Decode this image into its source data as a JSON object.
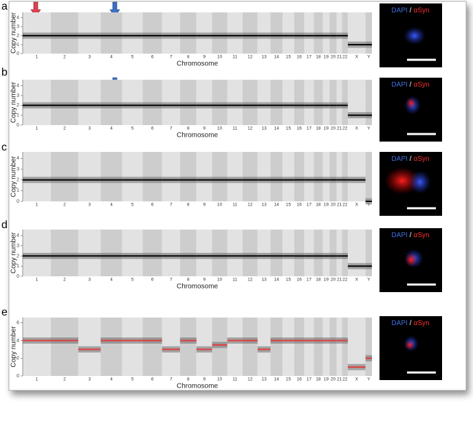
{
  "chart_data": [
    {
      "type": "line",
      "panel": "a",
      "ylabel": "Copy number",
      "xlabel": "Chromosome",
      "categories": [
        "1",
        "2",
        "3",
        "4",
        "5",
        "6",
        "7",
        "8",
        "9",
        "10",
        "11",
        "12",
        "13",
        "14",
        "15",
        "16",
        "17",
        "18",
        "19",
        "20",
        "21",
        "22",
        "X",
        "Y"
      ],
      "series": [
        {
          "color": "#000000",
          "values": [
            2,
            2,
            2,
            2,
            2,
            2,
            2,
            2,
            2,
            2,
            2,
            2,
            2,
            2,
            2,
            2,
            2,
            2,
            2,
            2,
            2,
            2,
            1,
            1
          ]
        }
      ],
      "ylim": [
        0,
        4.6
      ],
      "yticks": [
        0,
        1,
        2,
        3,
        4
      ],
      "image": {
        "stain1": "DAPI",
        "separator": "/",
        "stain2": "αSyn"
      }
    },
    {
      "type": "line",
      "panel": "b",
      "ylabel": "Copy number",
      "xlabel": "Chromosome",
      "categories": [
        "1",
        "2",
        "3",
        "4",
        "5",
        "6",
        "7",
        "8",
        "9",
        "10",
        "11",
        "12",
        "13",
        "14",
        "15",
        "16",
        "17",
        "18",
        "19",
        "20",
        "21",
        "22",
        "X",
        "Y"
      ],
      "series": [
        {
          "color": "#000000",
          "values": [
            2,
            2,
            2,
            2,
            2,
            2,
            2,
            2,
            2,
            2,
            2,
            2,
            2,
            2,
            2,
            2,
            2,
            2,
            2,
            2,
            2,
            2,
            1,
            1
          ]
        }
      ],
      "ylim": [
        0,
        4.6
      ],
      "yticks": [
        0,
        1,
        2,
        3,
        4
      ],
      "image": {
        "stain1": "DAPI",
        "separator": "/",
        "stain2": "αSyn"
      }
    },
    {
      "type": "line",
      "panel": "c",
      "ylabel": "Copy number",
      "categories": [
        "1",
        "2",
        "3",
        "4",
        "5",
        "6",
        "7",
        "8",
        "9",
        "10",
        "11",
        "12",
        "13",
        "14",
        "15",
        "16",
        "17",
        "18",
        "19",
        "20",
        "21",
        "22",
        "X",
        "Y"
      ],
      "series": [
        {
          "color": "#000000",
          "values": [
            2,
            2,
            2,
            2,
            2,
            2,
            2,
            2,
            2,
            2,
            2,
            2,
            2,
            2,
            2,
            2,
            2,
            2,
            2,
            2,
            2,
            2,
            2,
            0
          ]
        }
      ],
      "ylim": [
        0,
        4.6
      ],
      "yticks": [
        0,
        1,
        2,
        3,
        4
      ],
      "image": {
        "stain1": "DAPI",
        "separator": "/",
        "stain2": "αSyn"
      }
    },
    {
      "type": "line",
      "panel": "d",
      "ylabel": "Copy number",
      "xlabel": "Chromosome",
      "categories": [
        "1",
        "2",
        "3",
        "4",
        "5",
        "6",
        "7",
        "8",
        "9",
        "10",
        "11",
        "12",
        "13",
        "14",
        "15",
        "16",
        "17",
        "18",
        "19",
        "20",
        "21",
        "22",
        "X",
        "Y"
      ],
      "series": [
        {
          "color": "#000000",
          "values": [
            2,
            2,
            2,
            2,
            2,
            2,
            2,
            2,
            2,
            2,
            2,
            2,
            2,
            2,
            2,
            2,
            2,
            2,
            2,
            2,
            2,
            2,
            1,
            1
          ]
        }
      ],
      "ylim": [
        0,
        4.6
      ],
      "yticks": [
        0,
        1,
        2,
        3,
        4
      ],
      "image": {
        "stain1": "DAPI",
        "separator": "/",
        "stain2": "αSyn"
      }
    },
    {
      "type": "line",
      "panel": "e",
      "ylabel": "Copy number",
      "xlabel": "Chromosome",
      "categories": [
        "1",
        "2",
        "3",
        "4",
        "5",
        "6",
        "7",
        "8",
        "9",
        "10",
        "11",
        "12",
        "13",
        "14",
        "15",
        "16",
        "17",
        "18",
        "19",
        "20",
        "21",
        "22",
        "X",
        "Y"
      ],
      "series": [
        {
          "color": "#e03c3c",
          "values": [
            4,
            4,
            3,
            4,
            4,
            4,
            3,
            4,
            3,
            3.5,
            4,
            4,
            3,
            4,
            4,
            4,
            4,
            4,
            4,
            4,
            4,
            4,
            1,
            2
          ]
        }
      ],
      "ylim": [
        0,
        6.6
      ],
      "yticks": [
        0,
        2,
        4,
        6
      ],
      "image": {
        "stain1": "DAPI",
        "separator": "/",
        "stain2": "αSyn"
      }
    }
  ]
}
